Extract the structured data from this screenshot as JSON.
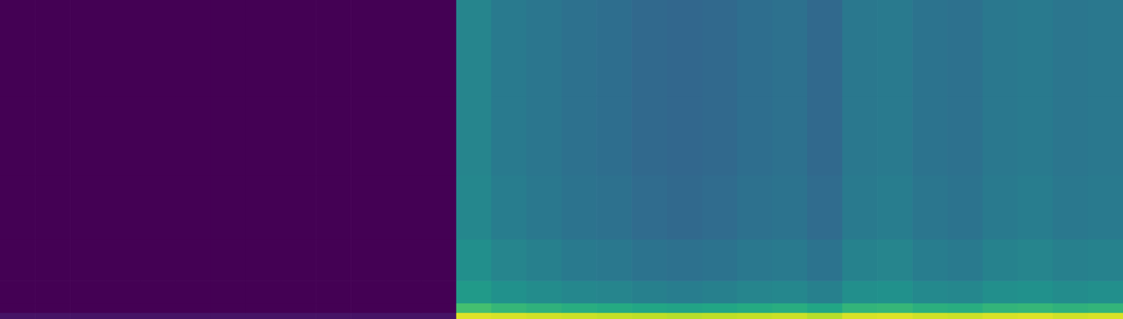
{
  "chart_data": {
    "type": "heatmap",
    "xlim": [
      0,
      32
    ],
    "ylim": [
      0,
      100
    ],
    "y_edges": [
      0,
      2,
      5,
      12,
      25,
      45,
      70,
      100
    ],
    "color_range": [
      0,
      1
    ],
    "tick_labels": false,
    "cells": [
      [
        0.05,
        0.05,
        0.05,
        0.05,
        0.05,
        0.05,
        0.05,
        0.05,
        0.05,
        0.05,
        0.05,
        0.05,
        0.05,
        0.95,
        0.94,
        0.93,
        0.92,
        0.91,
        0.9,
        0.89,
        0.9,
        0.91,
        0.92,
        0.89,
        0.94,
        0.95,
        0.93,
        0.92,
        0.94,
        0.95,
        0.93,
        0.94
      ],
      [
        0,
        0,
        0,
        0,
        0,
        0,
        0,
        0,
        0,
        0,
        0,
        0,
        0,
        0.7,
        0.66,
        0.64,
        0.62,
        0.61,
        0.59,
        0.58,
        0.59,
        0.61,
        0.62,
        0.59,
        0.65,
        0.66,
        0.63,
        0.62,
        0.65,
        0.66,
        0.64,
        0.65
      ],
      [
        0,
        0,
        0,
        0,
        0,
        0,
        0,
        0,
        0,
        0,
        0,
        0,
        0,
        0.54,
        0.5,
        0.48,
        0.46,
        0.45,
        0.43,
        0.42,
        0.43,
        0.45,
        0.46,
        0.43,
        0.49,
        0.5,
        0.47,
        0.46,
        0.49,
        0.5,
        0.48,
        0.49
      ],
      [
        0,
        0,
        0,
        0,
        0,
        0,
        0,
        0,
        0,
        0,
        0,
        0,
        0,
        0.49,
        0.45,
        0.43,
        0.41,
        0.4,
        0.38,
        0.37,
        0.38,
        0.4,
        0.41,
        0.38,
        0.44,
        0.45,
        0.42,
        0.41,
        0.44,
        0.45,
        0.43,
        0.44
      ],
      [
        0,
        0,
        0,
        0,
        0,
        0,
        0,
        0,
        0,
        0,
        0,
        0,
        0,
        0.46,
        0.42,
        0.4,
        0.38,
        0.37,
        0.35,
        0.34,
        0.35,
        0.37,
        0.38,
        0.35,
        0.41,
        0.42,
        0.39,
        0.38,
        0.41,
        0.42,
        0.4,
        0.41
      ],
      [
        0,
        0,
        0,
        0,
        0,
        0,
        0,
        0,
        0,
        0,
        0,
        0,
        0,
        0.45,
        0.41,
        0.39,
        0.37,
        0.36,
        0.34,
        0.33,
        0.34,
        0.36,
        0.37,
        0.34,
        0.4,
        0.41,
        0.38,
        0.37,
        0.4,
        0.41,
        0.39,
        0.4
      ],
      [
        0,
        0,
        0,
        0,
        0,
        0,
        0,
        0,
        0,
        0,
        0,
        0,
        0,
        0.45,
        0.41,
        0.39,
        0.37,
        0.36,
        0.34,
        0.33,
        0.34,
        0.36,
        0.37,
        0.34,
        0.4,
        0.41,
        0.38,
        0.37,
        0.4,
        0.41,
        0.39,
        0.4
      ]
    ]
  }
}
